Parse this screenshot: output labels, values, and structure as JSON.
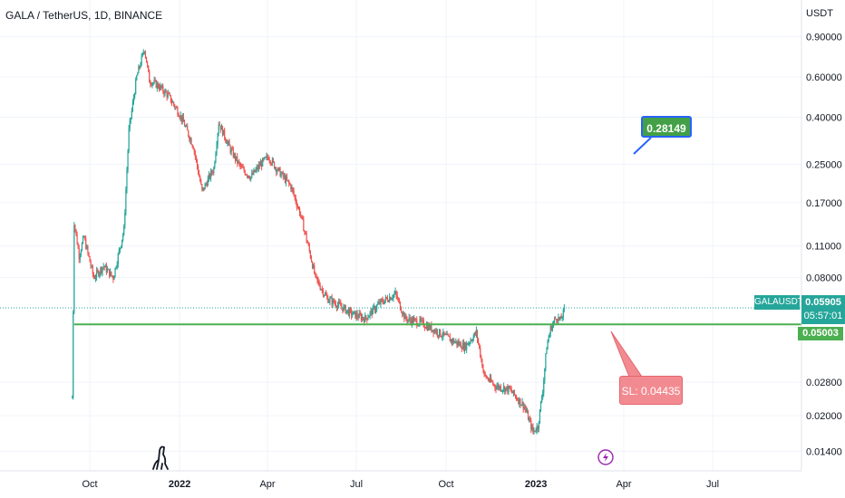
{
  "symbol_title": "GALA / TetherUS, 1D, BINANCE",
  "currency": "USDT",
  "colors": {
    "up": "#26a69a",
    "down": "#ef5350",
    "level": "#4caf50",
    "target": "#43a047",
    "stop": "#f28b91",
    "grid": "#f0f3fa"
  },
  "chart_data": {
    "type": "candlestick",
    "title": "GALA / TetherUS, 1D, BINANCE",
    "y_axis": {
      "scale": "log",
      "unit": "USDT",
      "ticks": [
        "0.90000",
        "0.60000",
        "0.40000",
        "0.25000",
        "0.17000",
        "0.11000",
        "0.08000",
        "0.02800",
        "0.02000",
        "0.01400"
      ],
      "ylim": [
        0.0115,
        1.3
      ]
    },
    "x_axis": {
      "ticks": [
        {
          "label": "Oct",
          "date": "2021-10-01",
          "year": false
        },
        {
          "label": "2022",
          "date": "2022-01-01",
          "year": true
        },
        {
          "label": "Apr",
          "date": "2022-04-01",
          "year": false
        },
        {
          "label": "Jul",
          "date": "2022-07-01",
          "year": false
        },
        {
          "label": "Oct",
          "date": "2022-10-01",
          "year": false
        },
        {
          "label": "2023",
          "date": "2023-01-01",
          "year": true
        },
        {
          "label": "Apr",
          "date": "2023-04-01",
          "year": false
        },
        {
          "label": "Jul",
          "date": "2023-07-01",
          "year": false
        }
      ],
      "xlim": [
        "2021-07-01",
        "2023-09-30"
      ]
    },
    "grid": true,
    "price_path": [
      [
        "2021-09-13",
        0.024
      ],
      [
        "2021-09-15",
        0.14
      ],
      [
        "2021-09-20",
        0.1
      ],
      [
        "2021-09-25",
        0.12
      ],
      [
        "2021-10-05",
        0.08
      ],
      [
        "2021-10-15",
        0.09
      ],
      [
        "2021-10-25",
        0.08
      ],
      [
        "2021-11-05",
        0.13
      ],
      [
        "2021-11-10",
        0.35
      ],
      [
        "2021-11-18",
        0.6
      ],
      [
        "2021-11-26",
        0.8
      ],
      [
        "2021-12-01",
        0.58
      ],
      [
        "2021-12-10",
        0.55
      ],
      [
        "2021-12-20",
        0.5
      ],
      [
        "2021-12-31",
        0.42
      ],
      [
        "2022-01-05",
        0.38
      ],
      [
        "2022-01-15",
        0.3
      ],
      [
        "2022-01-24",
        0.19
      ],
      [
        "2022-02-05",
        0.24
      ],
      [
        "2022-02-10",
        0.38
      ],
      [
        "2022-02-22",
        0.29
      ],
      [
        "2022-03-05",
        0.24
      ],
      [
        "2022-03-15",
        0.22
      ],
      [
        "2022-03-25",
        0.25
      ],
      [
        "2022-04-02",
        0.27
      ],
      [
        "2022-04-10",
        0.24
      ],
      [
        "2022-04-25",
        0.2
      ],
      [
        "2022-05-05",
        0.15
      ],
      [
        "2022-05-15",
        0.1
      ],
      [
        "2022-05-20",
        0.08
      ],
      [
        "2022-06-01",
        0.065
      ],
      [
        "2022-06-15",
        0.06
      ],
      [
        "2022-06-25",
        0.056
      ],
      [
        "2022-07-10",
        0.053
      ],
      [
        "2022-07-25",
        0.062
      ],
      [
        "2022-08-10",
        0.068
      ],
      [
        "2022-08-20",
        0.053
      ],
      [
        "2022-09-05",
        0.051
      ],
      [
        "2022-09-20",
        0.047
      ],
      [
        "2022-10-05",
        0.043
      ],
      [
        "2022-10-20",
        0.04
      ],
      [
        "2022-11-01",
        0.046
      ],
      [
        "2022-11-09",
        0.03
      ],
      [
        "2022-11-20",
        0.027
      ],
      [
        "2022-12-05",
        0.026
      ],
      [
        "2022-12-20",
        0.022
      ],
      [
        "2022-12-29",
        0.017
      ],
      [
        "2023-01-03",
        0.018
      ],
      [
        "2023-01-08",
        0.026
      ],
      [
        "2023-01-12",
        0.04
      ],
      [
        "2023-01-16",
        0.048
      ],
      [
        "2023-01-22",
        0.054
      ],
      [
        "2023-01-26",
        0.052
      ],
      [
        "2023-01-31",
        0.059
      ]
    ],
    "last_price": {
      "value": 0.05905,
      "label": "0.05905",
      "symbol": "GALAUSDT",
      "countdown": "05:57:01"
    },
    "support_level": {
      "value": 0.05003,
      "label": "0.05003",
      "from": "2021-09-15"
    },
    "annotations": [
      {
        "text": "0.28149",
        "kind": "target",
        "value": 0.28149
      },
      {
        "text": "SL: 0.04435",
        "kind": "stop-loss",
        "value": 0.04435
      }
    ]
  }
}
